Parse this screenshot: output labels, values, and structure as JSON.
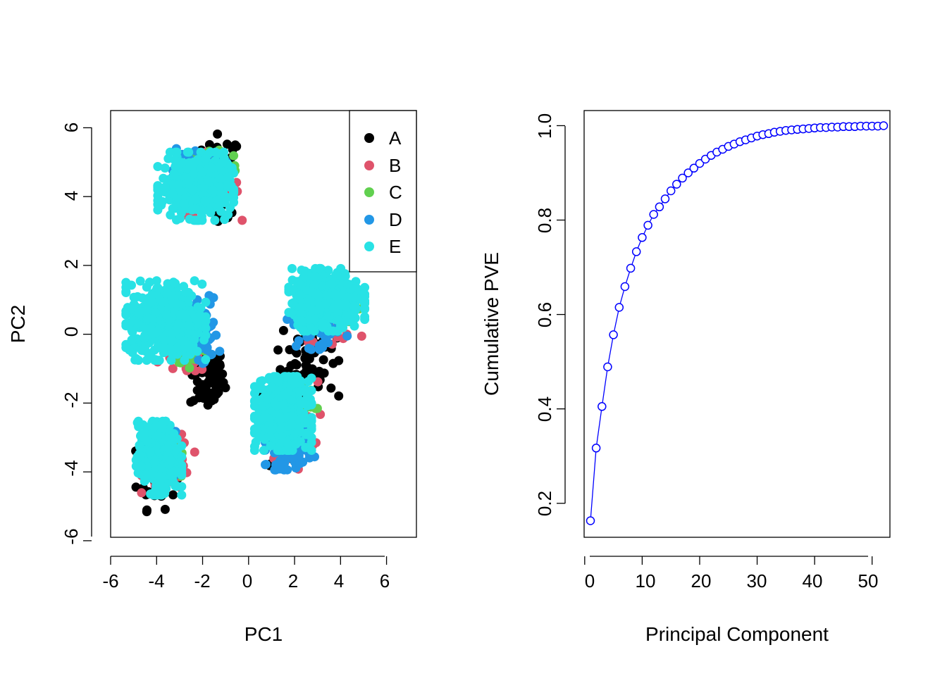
{
  "chart_data": [
    {
      "type": "scatter",
      "xlabel": "PC1",
      "ylabel": "PC2",
      "xlim": [
        -6,
        7.3
      ],
      "ylim": [
        -5.9,
        6.5
      ],
      "x_ticks": [
        -6,
        -4,
        -2,
        0,
        2,
        4,
        6
      ],
      "x_tick_labels": [
        "-6",
        "-4",
        "-2",
        "0",
        "2",
        "4",
        "6"
      ],
      "y_ticks": [
        -6,
        -4,
        -2,
        0,
        2,
        4,
        6
      ],
      "y_tick_labels": [
        "-6",
        "-4",
        "-2",
        "0",
        "2",
        "4",
        "6"
      ],
      "legend_position": "top-right",
      "series": [
        {
          "name": "A",
          "color": "#000000"
        },
        {
          "name": "B",
          "color": "#DF536B"
        },
        {
          "name": "C",
          "color": "#61D04F"
        },
        {
          "name": "D",
          "color": "#2297E6"
        },
        {
          "name": "E",
          "color": "#28E2E5"
        }
      ],
      "clusters": [
        {
          "series": "A",
          "cx": -1.2,
          "cy": 4.6,
          "sx": 0.55,
          "sy": 0.8,
          "n": 60
        },
        {
          "series": "B",
          "cx": -1.6,
          "cy": 4.3,
          "sx": 0.8,
          "sy": 0.6,
          "n": 60
        },
        {
          "series": "C",
          "cx": -1.5,
          "cy": 4.9,
          "sx": 0.7,
          "sy": 0.45,
          "n": 40
        },
        {
          "series": "D",
          "cx": -2.2,
          "cy": 4.6,
          "sx": 0.75,
          "sy": 0.55,
          "n": 60
        },
        {
          "series": "E",
          "cx": -2.3,
          "cy": 4.3,
          "sx": 1.0,
          "sy": 0.6,
          "n": 420
        },
        {
          "series": "A",
          "cx": -1.8,
          "cy": -1.3,
          "sx": 0.5,
          "sy": 0.6,
          "n": 80
        },
        {
          "series": "B",
          "cx": -2.8,
          "cy": -0.5,
          "sx": 0.7,
          "sy": 0.45,
          "n": 60
        },
        {
          "series": "C",
          "cx": -2.5,
          "cy": -0.4,
          "sx": 0.5,
          "sy": 0.35,
          "n": 30
        },
        {
          "series": "D",
          "cx": -2.0,
          "cy": 0.0,
          "sx": 0.45,
          "sy": 0.7,
          "n": 70
        },
        {
          "series": "E",
          "cx": -3.6,
          "cy": 0.4,
          "sx": 1.05,
          "sy": 0.7,
          "n": 500
        },
        {
          "series": "A",
          "cx": -4.0,
          "cy": -4.0,
          "sx": 0.55,
          "sy": 0.7,
          "n": 50
        },
        {
          "series": "B",
          "cx": -3.5,
          "cy": -3.7,
          "sx": 0.7,
          "sy": 0.55,
          "n": 60
        },
        {
          "series": "C",
          "cx": -3.5,
          "cy": -3.8,
          "sx": 0.5,
          "sy": 0.45,
          "n": 25
        },
        {
          "series": "D",
          "cx": -3.8,
          "cy": -3.6,
          "sx": 0.5,
          "sy": 0.5,
          "n": 40
        },
        {
          "series": "E",
          "cx": -3.9,
          "cy": -3.6,
          "sx": 0.6,
          "sy": 0.65,
          "n": 380
        },
        {
          "series": "A",
          "cx": 2.6,
          "cy": -0.6,
          "sx": 0.8,
          "sy": 0.8,
          "n": 60
        },
        {
          "series": "B",
          "cx": 3.6,
          "cy": 0.7,
          "sx": 0.8,
          "sy": 0.6,
          "n": 60
        },
        {
          "series": "C",
          "cx": 3.7,
          "cy": 0.9,
          "sx": 0.8,
          "sy": 0.5,
          "n": 50
        },
        {
          "series": "D",
          "cx": 3.0,
          "cy": 0.3,
          "sx": 0.8,
          "sy": 0.45,
          "n": 60
        },
        {
          "series": "E",
          "cx": 3.4,
          "cy": 1.0,
          "sx": 1.0,
          "sy": 0.55,
          "n": 520
        },
        {
          "series": "A",
          "cx": 1.5,
          "cy": -2.5,
          "sx": 0.75,
          "sy": 0.8,
          "n": 60
        },
        {
          "series": "B",
          "cx": 1.8,
          "cy": -2.6,
          "sx": 0.8,
          "sy": 0.8,
          "n": 50
        },
        {
          "series": "C",
          "cx": 2.0,
          "cy": -2.3,
          "sx": 0.6,
          "sy": 0.5,
          "n": 30
        },
        {
          "series": "D",
          "cx": 1.8,
          "cy": -3.2,
          "sx": 0.65,
          "sy": 0.45,
          "n": 130
        },
        {
          "series": "E",
          "cx": 1.5,
          "cy": -2.3,
          "sx": 0.75,
          "sy": 0.65,
          "n": 520
        }
      ]
    },
    {
      "type": "line",
      "xlabel": "Principal Component",
      "ylabel": "Cumulative PVE",
      "xlim": [
        -0.1,
        53.1
      ],
      "ylim": [
        0.128,
        1.032
      ],
      "x_ticks": [
        0,
        10,
        20,
        30,
        40,
        50
      ],
      "x_tick_labels": [
        "0",
        "10",
        "20",
        "30",
        "40",
        "50"
      ],
      "y_ticks": [
        0.2,
        0.4,
        0.6,
        0.8,
        1.0
      ],
      "y_tick_labels": [
        "0.2",
        "0.4",
        "0.6",
        "0.8",
        "1.0"
      ],
      "color": "#0000FF",
      "x": [
        1,
        2,
        3,
        4,
        5,
        6,
        7,
        8,
        9,
        10,
        11,
        12,
        13,
        14,
        15,
        16,
        17,
        18,
        19,
        20,
        21,
        22,
        23,
        24,
        25,
        26,
        27,
        28,
        29,
        30,
        31,
        32,
        33,
        34,
        35,
        36,
        37,
        38,
        39,
        40,
        41,
        42,
        43,
        44,
        45,
        46,
        47,
        48,
        49,
        50,
        51,
        52
      ],
      "y": [
        0.163,
        0.317,
        0.405,
        0.489,
        0.557,
        0.615,
        0.659,
        0.698,
        0.733,
        0.763,
        0.789,
        0.812,
        0.828,
        0.845,
        0.862,
        0.876,
        0.889,
        0.9,
        0.91,
        0.92,
        0.929,
        0.937,
        0.944,
        0.95,
        0.956,
        0.961,
        0.966,
        0.97,
        0.974,
        0.978,
        0.981,
        0.983,
        0.986,
        0.988,
        0.99,
        0.991,
        0.992,
        0.993,
        0.994,
        0.995,
        0.996,
        0.996,
        0.997,
        0.997,
        0.998,
        0.998,
        0.998,
        0.999,
        0.999,
        0.999,
        0.999,
        1.0
      ]
    }
  ]
}
